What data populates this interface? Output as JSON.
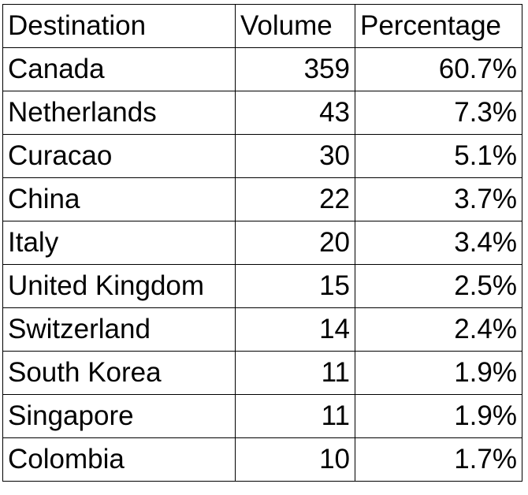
{
  "table": {
    "header": [
      "Destination",
      "Volume",
      "Percentage"
    ],
    "rows": [
      [
        "Canada",
        "359",
        "60.7%"
      ],
      [
        "Netherlands",
        "43",
        "7.3%"
      ],
      [
        "Curacao",
        "30",
        "5.1%"
      ],
      [
        "China",
        "22",
        "3.7%"
      ],
      [
        "Italy",
        "20",
        "3.4%"
      ],
      [
        "United Kingdom",
        "15",
        "2.5%"
      ],
      [
        "Switzerland",
        "14",
        "2.4%"
      ],
      [
        "South Korea",
        "11",
        "1.9%"
      ],
      [
        "Singapore",
        "11",
        "1.9%"
      ],
      [
        "Colombia",
        "10",
        "1.7%"
      ]
    ]
  }
}
